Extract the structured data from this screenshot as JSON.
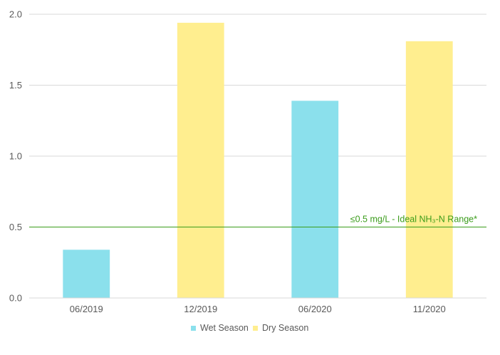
{
  "chart_data": {
    "type": "bar",
    "title": "",
    "xlabel": "",
    "ylabel": "",
    "ylim": [
      0,
      2.0
    ],
    "yticks": [
      "0.0",
      "0.5",
      "1.0",
      "1.5",
      "2.0"
    ],
    "grid": true,
    "legend_position": "bottom",
    "categories": [
      "06/2019",
      "12/2019",
      "06/2020",
      "11/2020"
    ],
    "series": [
      {
        "name": "Wet Season",
        "color": "#8be0ec",
        "values": [
          0.34,
          null,
          1.39,
          null
        ]
      },
      {
        "name": "Dry Season",
        "color": "#ffee8f",
        "values": [
          null,
          1.94,
          null,
          1.81
        ]
      }
    ],
    "reference_line": {
      "value": 0.5,
      "label": "≤0.5 mg/L - Ideal NH₃-N Range*",
      "color": "#3a9c1a"
    }
  }
}
